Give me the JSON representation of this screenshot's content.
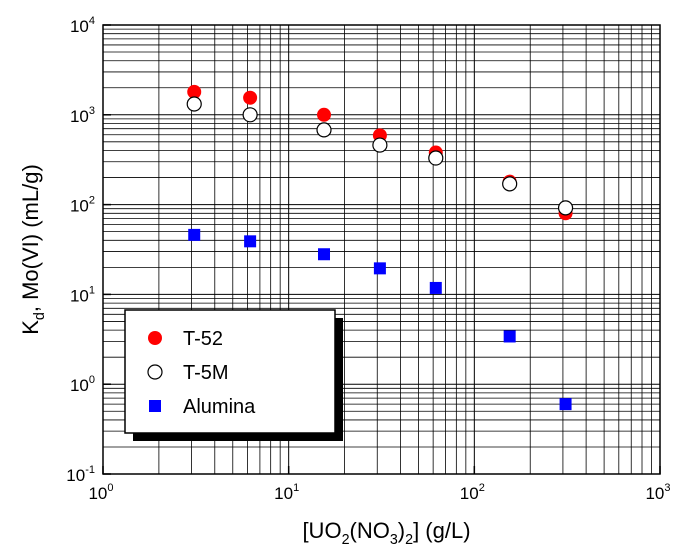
{
  "chart_data": {
    "type": "scatter",
    "x_scale": "log",
    "y_scale": "log",
    "xlim": [
      1,
      1000
    ],
    "ylim": [
      0.1,
      10000
    ],
    "grid": true,
    "grid_minor": true,
    "x_ticks": [
      {
        "base": "10",
        "exp": "0",
        "value": 1
      },
      {
        "base": "10",
        "exp": "1",
        "value": 10
      },
      {
        "base": "10",
        "exp": "2",
        "value": 100
      },
      {
        "base": "10",
        "exp": "3",
        "value": 1000
      }
    ],
    "y_ticks": [
      {
        "base": "10",
        "exp": "-1",
        "value": 0.1
      },
      {
        "base": "10",
        "exp": "0",
        "value": 1
      },
      {
        "base": "10",
        "exp": "1",
        "value": 10
      },
      {
        "base": "10",
        "exp": "2",
        "value": 100
      },
      {
        "base": "10",
        "exp": "3",
        "value": 1000
      },
      {
        "base": "10",
        "exp": "4",
        "value": 10000
      }
    ],
    "xlabel": {
      "parts": [
        {
          "text": "[UO",
          "sub": false
        },
        {
          "text": "2",
          "sub": true
        },
        {
          "text": "(NO",
          "sub": false
        },
        {
          "text": "3",
          "sub": true
        },
        {
          "text": ")",
          "sub": false
        },
        {
          "text": "2",
          "sub": true
        },
        {
          "text": "] (g/L)",
          "sub": false
        }
      ]
    },
    "ylabel": {
      "parts": [
        {
          "text": "K",
          "sub": false
        },
        {
          "text": "d",
          "sub": true
        },
        {
          "text": ", Mo(VI) (mL/g)",
          "sub": false
        }
      ]
    },
    "legend_position": "lower-left",
    "series": [
      {
        "name": "T-52",
        "marker": "circle-filled",
        "color": "#ff0000",
        "points": [
          [
            3.1,
            1800
          ],
          [
            6.2,
            1550
          ],
          [
            15.5,
            1000
          ],
          [
            31,
            590
          ],
          [
            62,
            380
          ],
          [
            155,
            180
          ],
          [
            310,
            80
          ]
        ]
      },
      {
        "name": "T-5M",
        "marker": "circle-open",
        "color": "#000000",
        "points": [
          [
            3.1,
            1320
          ],
          [
            6.2,
            1000
          ],
          [
            15.5,
            680
          ],
          [
            31,
            460
          ],
          [
            62,
            330
          ],
          [
            155,
            170
          ],
          [
            310,
            92
          ]
        ]
      },
      {
        "name": "Alumina",
        "marker": "square-filled",
        "color": "#0000ff",
        "points": [
          [
            3.1,
            46
          ],
          [
            6.2,
            39
          ],
          [
            15.5,
            28
          ],
          [
            31,
            19.5
          ],
          [
            62,
            11.8
          ],
          [
            155,
            3.4
          ],
          [
            310,
            0.6
          ]
        ]
      }
    ]
  }
}
